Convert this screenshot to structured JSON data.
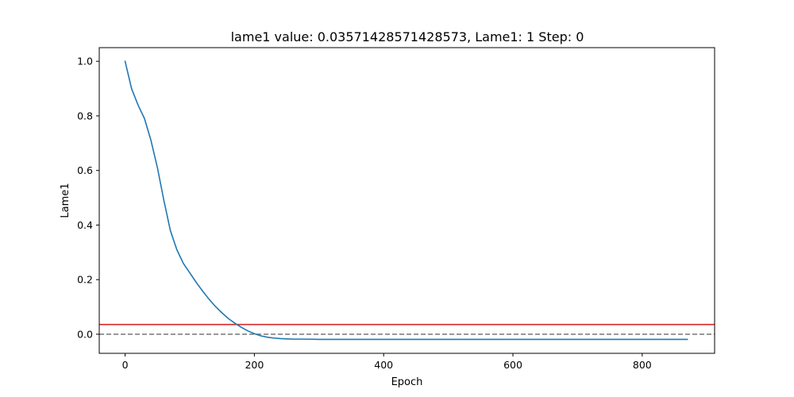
{
  "chart_data": {
    "type": "line",
    "title": "lame1 value: 0.03571428571428573, Lame1: 1 Step: 0",
    "xlabel": "Epoch",
    "ylabel": "Lame1",
    "xlim": [
      -40,
      912
    ],
    "ylim": [
      -0.07,
      1.05
    ],
    "xticks": [
      0,
      200,
      400,
      600,
      800
    ],
    "xtick_labels": [
      "0",
      "200",
      "400",
      "600",
      "800"
    ],
    "yticks": [
      0.0,
      0.2,
      0.4,
      0.6,
      0.8,
      1.0
    ],
    "ytick_labels": [
      "0.0",
      "0.2",
      "0.4",
      "0.6",
      "0.8",
      "1.0"
    ],
    "grid": false,
    "series": [
      {
        "color": "#1f77b4",
        "x": [
          0,
          10,
          20,
          30,
          40,
          50,
          60,
          70,
          80,
          90,
          100,
          110,
          120,
          130,
          140,
          150,
          160,
          170,
          180,
          190,
          200,
          210,
          220,
          230,
          240,
          250,
          260,
          280,
          300,
          350,
          400,
          500,
          600,
          700,
          800,
          870
        ],
        "y": [
          1.0,
          0.9,
          0.84,
          0.79,
          0.71,
          0.61,
          0.49,
          0.38,
          0.31,
          0.26,
          0.225,
          0.19,
          0.158,
          0.128,
          0.101,
          0.078,
          0.057,
          0.04,
          0.025,
          0.012,
          0.002,
          -0.006,
          -0.011,
          -0.014,
          -0.016,
          -0.017,
          -0.018,
          -0.018,
          -0.019,
          -0.019,
          -0.019,
          -0.019,
          -0.019,
          -0.019,
          -0.019,
          -0.019
        ]
      }
    ],
    "hlines": [
      {
        "y": 0.03571428571428573,
        "color": "#d62728",
        "style": "solid"
      },
      {
        "y": 0.0,
        "color": "#808080",
        "style": "dashed"
      }
    ]
  }
}
